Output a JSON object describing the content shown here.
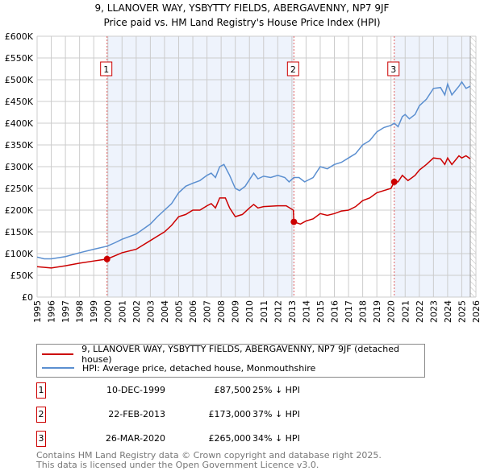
{
  "chart_data": {
    "type": "line",
    "title": "9, LLANOVER WAY, YSBYTTY FIELDS, ABERGAVENNY, NP7 9JF",
    "subtitle": "Price paid vs. HM Land Registry's House Price Index (HPI)",
    "xlim": [
      1995,
      2026
    ],
    "ylim": [
      0,
      600000
    ],
    "x_ticks": [
      1995,
      1996,
      1997,
      1998,
      1999,
      2000,
      2001,
      2002,
      2003,
      2004,
      2005,
      2006,
      2007,
      2008,
      2009,
      2010,
      2011,
      2012,
      2013,
      2014,
      2015,
      2016,
      2017,
      2018,
      2019,
      2020,
      2021,
      2022,
      2023,
      2024,
      2025,
      2026
    ],
    "y_ticks": [
      {
        "v": 0,
        "label": "£0"
      },
      {
        "v": 50000,
        "label": "£50K"
      },
      {
        "v": 100000,
        "label": "£100K"
      },
      {
        "v": 150000,
        "label": "£150K"
      },
      {
        "v": 200000,
        "label": "£200K"
      },
      {
        "v": 250000,
        "label": "£250K"
      },
      {
        "v": 300000,
        "label": "£300K"
      },
      {
        "v": 350000,
        "label": "£350K"
      },
      {
        "v": 400000,
        "label": "£400K"
      },
      {
        "v": 450000,
        "label": "£450K"
      },
      {
        "v": 500000,
        "label": "£500K"
      },
      {
        "v": 550000,
        "label": "£550K"
      },
      {
        "v": 600000,
        "label": "£600K"
      }
    ],
    "grid": true,
    "shaded_ranges": [
      [
        1999.94,
        2013.14
      ],
      [
        2020.23,
        2025.6
      ]
    ],
    "forecast_from": 2025.6,
    "series": [
      {
        "name": "9, LLANOVER WAY, YSBYTTY FIELDS, ABERGAVENNY, NP7 9JF (detached house)",
        "color": "#cc0000",
        "x": [
          1995,
          1996,
          1997,
          1998,
          1999,
          1999.94,
          2000.5,
          2001,
          2002,
          2003,
          2003.5,
          2004,
          2004.5,
          2005,
          2005.5,
          2006,
          2006.5,
          2007,
          2007.3,
          2007.6,
          2007.9,
          2008.3,
          2008.6,
          2009,
          2009.5,
          2010,
          2010.3,
          2010.6,
          2011,
          2012,
          2012.6,
          2013.1,
          2013.14,
          2013.6,
          2014,
          2014.5,
          2015,
          2015.5,
          2016,
          2016.5,
          2017,
          2017.5,
          2018,
          2018.5,
          2019,
          2019.5,
          2020,
          2020.23,
          2020.5,
          2020.8,
          2021.2,
          2021.7,
          2022,
          2022.5,
          2023,
          2023.5,
          2023.8,
          2024,
          2024.3,
          2024.8,
          2025,
          2025.3,
          2025.6
        ],
        "y": [
          70000,
          67000,
          72000,
          78000,
          83000,
          87500,
          95000,
          102000,
          110000,
          130000,
          140000,
          150000,
          165000,
          185000,
          190000,
          200000,
          200000,
          210000,
          215000,
          205000,
          228000,
          228000,
          205000,
          185000,
          190000,
          205000,
          213000,
          205000,
          208000,
          210000,
          210000,
          200000,
          173000,
          168000,
          175000,
          180000,
          192000,
          188000,
          192000,
          198000,
          200000,
          208000,
          222000,
          228000,
          240000,
          245000,
          250000,
          265000,
          265000,
          280000,
          268000,
          280000,
          292000,
          305000,
          320000,
          318000,
          305000,
          320000,
          305000,
          325000,
          320000,
          325000,
          318000
        ]
      },
      {
        "name": "HPI: Average price, detached house, Monmouthshire",
        "color": "#5b8fd0",
        "x": [
          1995,
          1995.5,
          1996,
          1997,
          1998,
          1999,
          1999.94,
          2000.5,
          2001,
          2002,
          2003,
          2003.5,
          2004,
          2004.5,
          2005,
          2005.5,
          2006,
          2006.5,
          2007,
          2007.3,
          2007.6,
          2007.9,
          2008.2,
          2008.6,
          2009,
          2009.3,
          2009.7,
          2010,
          2010.3,
          2010.6,
          2011,
          2011.5,
          2012,
          2012.5,
          2012.8,
          2013.14,
          2013.5,
          2013.9,
          2014.5,
          2015,
          2015.5,
          2016,
          2016.5,
          2017,
          2017.5,
          2018,
          2018.5,
          2019,
          2019.5,
          2020,
          2020.23,
          2020.5,
          2020.8,
          2021,
          2021.3,
          2021.7,
          2022,
          2022.5,
          2023,
          2023.5,
          2023.8,
          2024,
          2024.3,
          2024.8,
          2025,
          2025.3,
          2025.6
        ],
        "y": [
          92000,
          88000,
          88000,
          93000,
          102000,
          110000,
          117000,
          125000,
          133000,
          145000,
          168000,
          185000,
          200000,
          215000,
          240000,
          255000,
          262000,
          268000,
          280000,
          285000,
          275000,
          300000,
          305000,
          280000,
          250000,
          245000,
          255000,
          270000,
          285000,
          272000,
          278000,
          275000,
          280000,
          275000,
          265000,
          275000,
          275000,
          265000,
          275000,
          300000,
          295000,
          305000,
          310000,
          320000,
          330000,
          350000,
          360000,
          380000,
          390000,
          395000,
          400000,
          392000,
          415000,
          420000,
          410000,
          420000,
          440000,
          455000,
          480000,
          482000,
          465000,
          490000,
          465000,
          485000,
          495000,
          480000,
          485000
        ]
      }
    ],
    "sales": [
      {
        "label": "1",
        "x": 1999.94,
        "y": 87500
      },
      {
        "label": "2",
        "x": 2013.14,
        "y": 173000
      },
      {
        "label": "3",
        "x": 2020.23,
        "y": 265000
      }
    ]
  },
  "legend": {
    "property": "9, LLANOVER WAY, YSBYTTY FIELDS, ABERGAVENNY, NP7 9JF (detached house)",
    "hpi": "HPI: Average price, detached house, Monmouthshire"
  },
  "transactions": [
    {
      "num": "1",
      "date": "10-DEC-1999",
      "price": "£87,500",
      "hpi": "25% ↓ HPI"
    },
    {
      "num": "2",
      "date": "22-FEB-2013",
      "price": "£173,000",
      "hpi": "37% ↓ HPI"
    },
    {
      "num": "3",
      "date": "26-MAR-2020",
      "price": "£265,000",
      "hpi": "34% ↓ HPI"
    }
  ],
  "footer": {
    "line1": "Contains HM Land Registry data © Crown copyright and database right 2025.",
    "line2": "This data is licensed under the Open Government Licence v3.0."
  }
}
